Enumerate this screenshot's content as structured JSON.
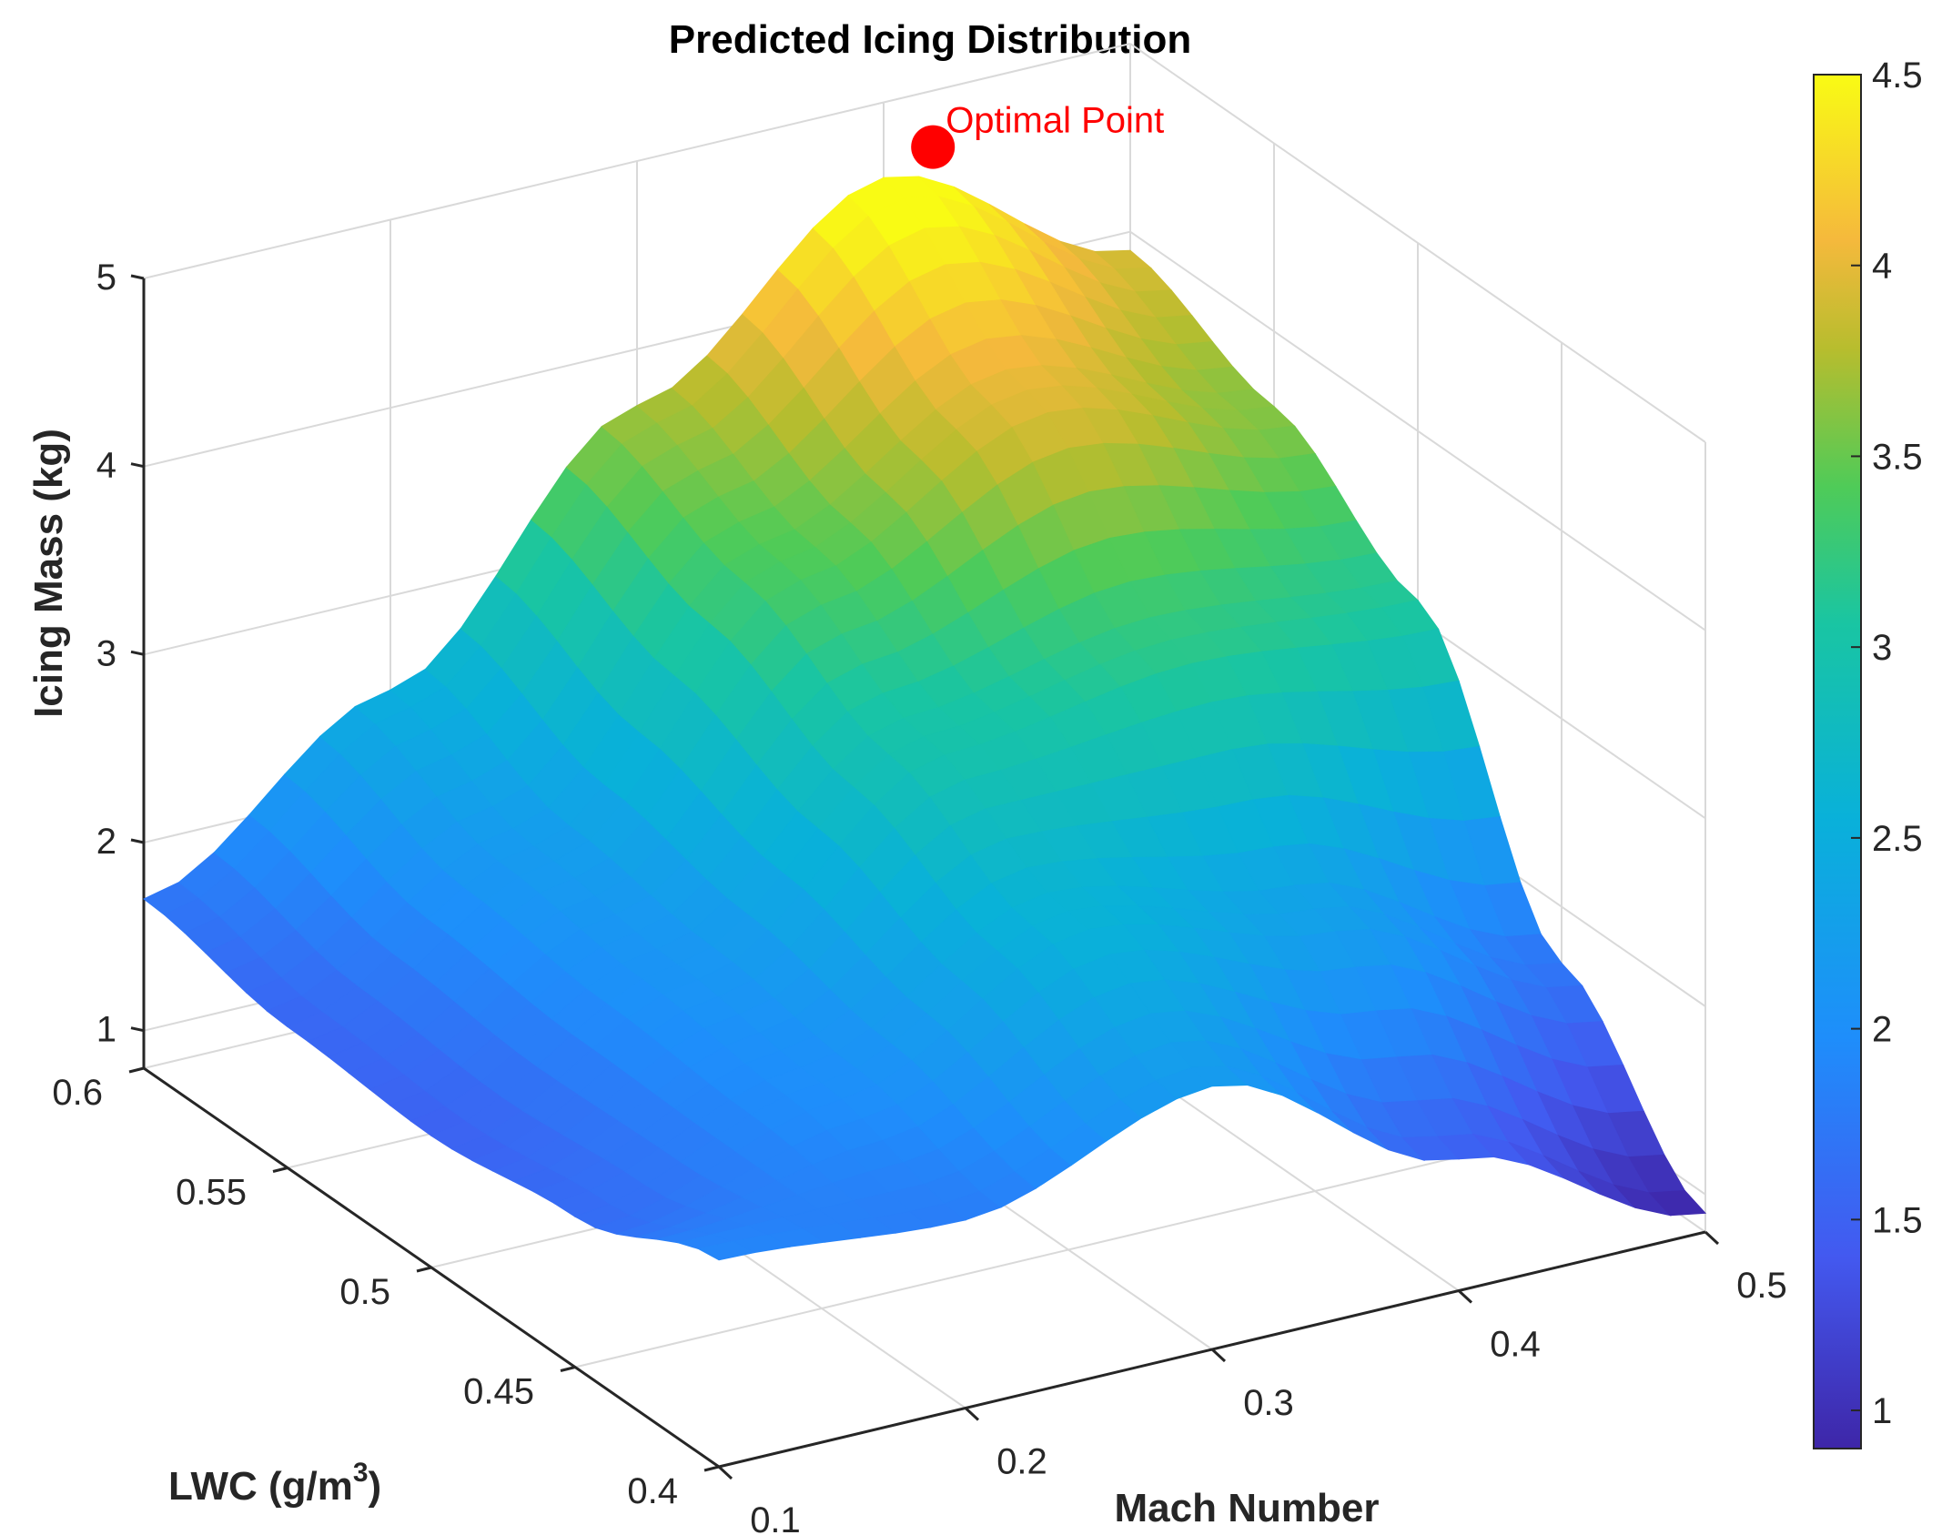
{
  "chart_data": {
    "type": "surface",
    "title": "Predicted Icing Distribution",
    "xlabel": "Mach Number",
    "ylabel": "LWC (g/m",
    "ylabel_sup": "3",
    "ylabel_suffix": ")",
    "zlabel": "Icing Mass (kg)",
    "xlim": [
      0.1,
      0.5
    ],
    "ylim": [
      0.4,
      0.6
    ],
    "zlim": [
      0.8,
      5
    ],
    "x_ticks": [
      0.1,
      0.2,
      0.3,
      0.4,
      0.5
    ],
    "x_tick_labels": [
      "0.1",
      "0.2",
      "0.3",
      "0.4",
      "0.5"
    ],
    "y_ticks": [
      0.4,
      0.45,
      0.5,
      0.55,
      0.6
    ],
    "y_tick_labels": [
      "0.4",
      "0.45",
      "0.5",
      "0.55",
      "0.6"
    ],
    "z_ticks": [
      1,
      2,
      3,
      4,
      5
    ],
    "z_tick_labels": [
      "1",
      "2",
      "3",
      "4",
      "5"
    ],
    "x": [
      0.1,
      0.2,
      0.3,
      0.4,
      0.5
    ],
    "y": [
      0.4,
      0.45,
      0.5,
      0.55,
      0.6
    ],
    "z": [
      [
        1.9,
        1.8,
        2.2,
        1.5,
        0.9
      ],
      [
        1.6,
        2.0,
        2.6,
        2.3,
        1.7
      ],
      [
        1.5,
        2.1,
        3.0,
        3.2,
        3.1
      ],
      [
        1.55,
        2.2,
        3.4,
        4.0,
        3.6
      ],
      [
        1.7,
        2.5,
        3.7,
        4.6,
        3.9
      ]
    ],
    "colorbar": {
      "limits": [
        0.9,
        4.5
      ],
      "ticks": [
        1,
        1.5,
        2,
        2.5,
        3,
        3.5,
        4,
        4.5
      ],
      "tick_labels": [
        "1",
        "1.5",
        "2",
        "2.5",
        "3",
        "3.5",
        "4",
        "4.5"
      ]
    },
    "annotations": [
      {
        "text": "Optimal Point",
        "x": 0.42,
        "y": 0.6,
        "z": 4.7,
        "color": "#ff0000"
      }
    ],
    "colormap": "parula",
    "grid": true
  }
}
